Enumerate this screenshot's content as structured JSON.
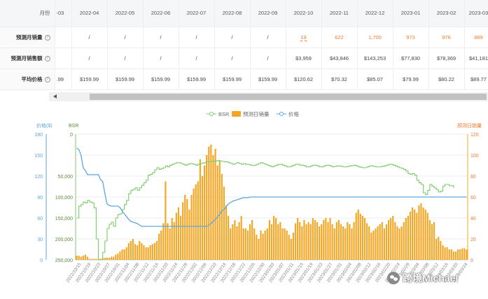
{
  "table": {
    "header_label": "月份",
    "months": [
      "-03",
      "2022-04",
      "2022-05",
      "2022-06",
      "2022-07",
      "2022-08",
      "2022-09",
      "2022-10",
      "2022-11",
      "2022-12",
      "2023-01",
      "2023-02",
      "2023-03"
    ],
    "rows": [
      {
        "label": "预测月销量",
        "help": "?",
        "values": [
          "",
          "/",
          "/",
          "/",
          "/",
          "/",
          "/",
          "19",
          "622",
          "1,700",
          "973",
          "976",
          "889"
        ]
      },
      {
        "label": "预测月销售额",
        "help": "?",
        "values": [
          "",
          "/",
          "/",
          "/",
          "/",
          "/",
          "/",
          "$3,959",
          "$43,846",
          "$143,253",
          "$77,830",
          "$78,369",
          "$41,181"
        ]
      },
      {
        "label": "平均价格",
        "help": "?",
        "values": [
          ".99",
          "$159.99",
          "$159.99",
          "$159.99",
          "$159.99",
          "$159.99",
          "$159.99",
          "$120.62",
          "$70.32",
          "$85.07",
          "$79.99",
          "$80.22",
          "$89.77"
        ]
      }
    ]
  },
  "chart_data": {
    "type": "line",
    "legend": [
      "BSR",
      "预测日销量",
      "价格"
    ],
    "legend_position": "top-center",
    "colors": {
      "bsr": "#7ccb6a",
      "sales": "#f5a623",
      "price": "#5aa6e0"
    },
    "axes": {
      "price": {
        "label": "价格($)",
        "ticks": [
          "0",
          "30",
          "60",
          "90",
          "120",
          "150",
          "180"
        ],
        "range": [
          0,
          180
        ]
      },
      "bsr": {
        "label": "BSR",
        "ticks": [
          "250,000",
          "200,000",
          "150,000",
          "100,000",
          "50,000",
          "0"
        ],
        "range": [
          250000,
          0
        ],
        "inverted": true
      },
      "sales": {
        "label": "预测日销量",
        "ticks": [
          "0",
          "20",
          "40",
          "60",
          "80",
          "100",
          "120"
        ],
        "range": [
          0,
          120
        ]
      }
    },
    "x_ticks": [
      "2022/10/15",
      "2022/10/19",
      "2022/10/23",
      "2022/10/27",
      "2022/10/31",
      "2022/11/04",
      "2022/11/08",
      "2022/11/12",
      "2022/11/16",
      "2022/11/20",
      "2022/11/24",
      "2022/11/28",
      "2022/12/02",
      "2022/12/06",
      "2022/12/10",
      "2022/12/14",
      "2022/12/18",
      "2022/12/22",
      "2022/12/26",
      "2022/12/30",
      "2023/01/03",
      "2023/01/07",
      "2023/01/11",
      "2023/01/15",
      "2023/01/19",
      "2023/01/23",
      "2023/01/27",
      "2023/01/31",
      "2023/02/04",
      "2023/02/08",
      "2023/02/12",
      "2023/02/16",
      "2023/02/20",
      "2023/02/24",
      "2023/02/28",
      "2023/03/04",
      "2023/03/08",
      "2023/03/12",
      "2023/03/16",
      "2023/03/20",
      "2023/03/24"
    ],
    "series": [
      {
        "name": "预测日销量",
        "axis": "sales",
        "kind": "bar",
        "values": [
          4,
          4,
          3,
          4,
          5,
          3,
          1,
          1,
          1,
          1,
          1,
          1,
          2,
          2,
          2,
          2,
          3,
          3,
          5,
          6,
          8,
          10,
          10,
          12,
          16,
          18,
          20,
          15,
          14,
          18,
          16,
          14,
          12,
          12,
          14,
          15,
          16,
          18,
          25,
          28,
          35,
          75,
          35,
          30,
          40,
          36,
          45,
          50,
          42,
          55,
          62,
          58,
          48,
          62,
          68,
          72,
          75,
          96,
          80,
          90,
          100,
          108,
          110,
          100,
          106,
          90,
          95,
          82,
          70,
          52,
          42,
          30,
          34,
          38,
          32,
          36,
          42,
          30,
          30,
          28,
          34,
          38,
          30,
          24,
          20,
          28,
          25,
          28,
          30,
          38,
          34,
          42,
          40,
          34,
          36,
          30,
          30,
          28,
          24,
          20,
          26,
          35,
          40,
          36,
          32,
          38,
          34,
          36,
          34,
          40,
          38,
          36,
          32,
          34,
          38,
          40,
          36,
          40,
          34,
          30,
          36,
          38,
          34,
          32,
          30,
          36,
          34,
          30,
          36,
          45,
          48,
          44,
          42,
          40,
          35,
          32,
          26,
          28,
          30,
          32,
          34,
          36,
          30,
          34,
          38,
          40,
          42,
          36,
          32,
          30,
          32,
          36,
          40,
          42,
          46,
          50,
          48,
          45,
          52,
          54,
          50,
          48,
          45,
          38,
          34,
          36,
          20,
          22,
          18,
          14,
          12,
          12,
          10,
          10,
          8,
          8,
          10,
          10,
          11,
          11,
          10
        ]
      },
      {
        "name": "BSR",
        "axis": "bsr",
        "kind": "line",
        "values": [
          150000,
          122000,
          118000,
          112000,
          114000,
          108000,
          112000,
          114000,
          126000,
          200000,
          250000,
          250000,
          232000,
          205000,
          175000,
          165000,
          160000,
          170000,
          150000,
          142000,
          140000,
          130000,
          118000,
          108000,
          92000,
          84000,
          82000,
          78000,
          84000,
          78000,
          72000,
          66000,
          60000,
          48000,
          46000,
          42000,
          35000,
          30000,
          34000,
          32000,
          30000,
          26000,
          28000,
          24000,
          22000,
          20000,
          18000,
          18000,
          20000,
          22000,
          24000,
          22000,
          20000,
          21000,
          22000,
          24000,
          22000,
          20000,
          19000,
          18000,
          16000,
          16000,
          15000,
          14000,
          14000,
          13000,
          14000,
          15000,
          16000,
          16000,
          18000,
          20000,
          22000,
          20000,
          18000,
          20000,
          22000,
          20000,
          22000,
          22000,
          24000,
          25000,
          24000,
          22000,
          20000,
          18000,
          20000,
          22000,
          24000,
          26000,
          28000,
          26000,
          24000,
          22000,
          22000,
          24000,
          26000,
          28000,
          28000,
          26000,
          24000,
          22000,
          22000,
          24000,
          24000,
          26000,
          28000,
          28000,
          26000,
          24000,
          24000,
          26000,
          28000,
          28000,
          26000,
          24000,
          24000,
          26000,
          28000,
          27000,
          26000,
          26000,
          27000,
          28000,
          28000,
          27000,
          26000,
          25000,
          24000,
          26000,
          28000,
          29000,
          30000,
          30000,
          28000,
          26000,
          26000,
          27000,
          28000,
          28000,
          28000,
          27000,
          26000,
          24000,
          22000,
          22000,
          24000,
          26000,
          28000,
          30000,
          32000,
          34000,
          38000,
          44000,
          46000,
          44000,
          48000,
          60000,
          66000,
          70000,
          90000,
          94000,
          84000,
          70000,
          74000,
          78000,
          82000,
          88000,
          86000,
          74000,
          70000,
          70000,
          73000,
          73000,
          78000
        ]
      },
      {
        "name": "价格",
        "axis": "price",
        "kind": "line",
        "values": [
          160,
          158,
          150,
          132,
          128,
          122,
          122,
          122,
          122,
          122,
          122,
          115,
          112,
          95,
          80,
          78,
          77,
          77,
          77,
          77,
          75,
          70,
          66,
          62,
          58,
          55,
          54,
          53,
          52,
          50,
          48,
          48,
          48,
          48,
          48,
          48,
          48,
          48,
          48,
          48,
          48,
          48,
          48,
          48,
          48,
          48,
          48,
          48,
          48,
          48,
          48,
          48,
          48,
          48,
          48,
          48,
          48,
          48,
          48,
          48,
          48,
          50,
          52,
          55,
          58,
          62,
          65,
          70,
          72,
          76,
          80,
          82,
          84,
          85,
          86,
          87,
          88,
          89,
          89,
          89,
          90,
          90,
          90,
          90,
          90,
          90,
          90,
          90,
          90,
          90,
          90,
          90,
          90,
          90,
          90,
          90,
          90,
          90,
          90,
          90,
          90,
          90,
          90,
          90,
          90,
          90,
          90,
          90,
          90,
          90,
          90,
          90,
          90,
          90,
          90,
          90,
          90,
          90,
          90,
          90,
          90,
          90,
          90,
          90,
          90,
          90,
          90,
          90,
          90,
          90,
          90,
          90,
          90,
          90,
          90,
          90,
          90,
          90,
          90,
          90,
          90,
          90,
          90,
          90,
          90,
          90,
          90,
          90,
          90,
          90,
          90,
          90,
          90,
          90,
          90,
          90,
          90,
          90,
          90,
          90,
          90,
          90,
          90,
          90,
          90,
          90,
          90,
          90,
          90,
          90,
          90,
          90,
          90,
          90,
          90,
          90,
          90,
          90,
          90,
          90,
          90
        ]
      }
    ]
  },
  "watermark": {
    "text": "跨境Michael"
  }
}
